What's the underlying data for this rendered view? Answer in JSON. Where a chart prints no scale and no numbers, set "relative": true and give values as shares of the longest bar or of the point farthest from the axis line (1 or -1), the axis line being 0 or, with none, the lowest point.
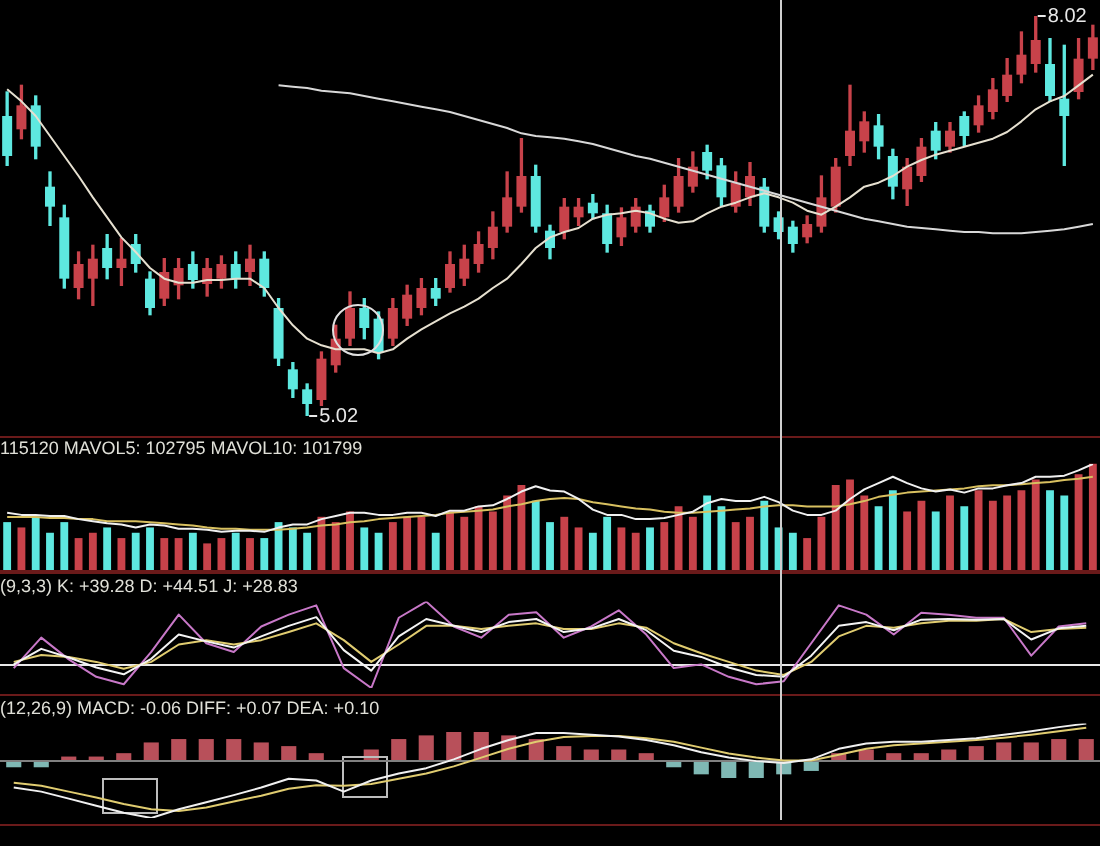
{
  "chart_data": [
    {
      "type": "candlestick",
      "legend": false,
      "tick_labels": false,
      "categories": [
        null,
        null,
        null,
        null,
        null,
        null,
        null,
        null,
        null,
        null,
        null,
        null,
        null,
        null,
        null,
        null,
        null,
        null,
        null,
        null,
        null,
        null,
        null,
        null,
        null,
        null,
        null,
        null,
        null,
        null,
        null,
        null,
        null,
        null,
        null,
        null,
        null,
        null,
        null,
        null,
        null,
        null,
        null,
        null,
        null,
        null,
        null,
        null,
        null,
        null,
        null,
        null,
        null,
        null,
        null,
        null,
        null,
        null,
        null,
        null,
        null,
        null,
        null,
        null,
        null,
        null,
        null,
        null,
        null,
        null,
        null,
        null,
        null,
        null,
        null,
        null,
        null
      ],
      "ohlc": [
        [
          7.27,
          7.45,
          6.9,
          6.97
        ],
        [
          7.17,
          7.5,
          7.1,
          7.35
        ],
        [
          7.35,
          7.42,
          6.95,
          7.04
        ],
        [
          6.74,
          6.85,
          6.45,
          6.59
        ],
        [
          6.51,
          6.6,
          5.98,
          6.05
        ],
        [
          5.98,
          6.25,
          5.9,
          6.16
        ],
        [
          6.05,
          6.3,
          5.85,
          6.2
        ],
        [
          6.28,
          6.38,
          6.05,
          6.13
        ],
        [
          6.13,
          6.35,
          6.0,
          6.2
        ],
        [
          6.31,
          6.38,
          6.1,
          6.16
        ],
        [
          6.05,
          6.1,
          5.78,
          5.83
        ],
        [
          5.9,
          6.2,
          5.85,
          6.1
        ],
        [
          6.0,
          6.2,
          5.9,
          6.13
        ],
        [
          6.16,
          6.25,
          5.98,
          6.04
        ],
        [
          6.01,
          6.2,
          5.92,
          6.13
        ],
        [
          6.05,
          6.22,
          5.98,
          6.16
        ],
        [
          6.16,
          6.25,
          5.98,
          6.05
        ],
        [
          6.1,
          6.3,
          6.0,
          6.2
        ],
        [
          6.2,
          6.25,
          5.92,
          5.98
        ],
        [
          5.83,
          5.9,
          5.4,
          5.45
        ],
        [
          5.37,
          5.42,
          5.16,
          5.22
        ],
        [
          5.22,
          5.26,
          5.02,
          5.11
        ],
        [
          5.14,
          5.5,
          5.1,
          5.45
        ],
        [
          5.4,
          5.7,
          5.35,
          5.6
        ],
        [
          5.6,
          5.95,
          5.55,
          5.83
        ],
        [
          5.83,
          5.9,
          5.6,
          5.68
        ],
        [
          5.75,
          5.8,
          5.45,
          5.5
        ],
        [
          5.6,
          5.9,
          5.55,
          5.83
        ],
        [
          5.75,
          6.0,
          5.7,
          5.93
        ],
        [
          5.83,
          6.05,
          5.78,
          5.98
        ],
        [
          5.98,
          6.05,
          5.85,
          5.9
        ],
        [
          5.98,
          6.25,
          5.95,
          6.16
        ],
        [
          6.05,
          6.3,
          6.0,
          6.2
        ],
        [
          6.16,
          6.4,
          6.1,
          6.31
        ],
        [
          6.28,
          6.55,
          6.2,
          6.44
        ],
        [
          6.44,
          6.85,
          6.4,
          6.66
        ],
        [
          6.59,
          7.1,
          6.55,
          6.82
        ],
        [
          6.82,
          6.9,
          6.4,
          6.44
        ],
        [
          6.41,
          6.45,
          6.2,
          6.28
        ],
        [
          6.4,
          6.65,
          6.35,
          6.59
        ],
        [
          6.51,
          6.65,
          6.45,
          6.59
        ],
        [
          6.62,
          6.68,
          6.5,
          6.54
        ],
        [
          6.54,
          6.6,
          6.25,
          6.31
        ],
        [
          6.36,
          6.58,
          6.3,
          6.51
        ],
        [
          6.44,
          6.65,
          6.4,
          6.59
        ],
        [
          6.56,
          6.6,
          6.4,
          6.44
        ],
        [
          6.51,
          6.75,
          6.48,
          6.66
        ],
        [
          6.59,
          6.95,
          6.55,
          6.82
        ],
        [
          6.74,
          7.0,
          6.7,
          6.89
        ],
        [
          7.0,
          7.05,
          6.8,
          6.86
        ],
        [
          6.9,
          6.95,
          6.6,
          6.66
        ],
        [
          6.59,
          6.85,
          6.55,
          6.77
        ],
        [
          6.66,
          6.92,
          6.6,
          6.82
        ],
        [
          6.74,
          6.8,
          6.4,
          6.44
        ],
        [
          6.51,
          6.55,
          6.35,
          6.4
        ],
        [
          6.44,
          6.48,
          6.25,
          6.31
        ],
        [
          6.36,
          6.52,
          6.32,
          6.46
        ],
        [
          6.44,
          6.82,
          6.4,
          6.66
        ],
        [
          6.59,
          6.95,
          6.55,
          6.89
        ],
        [
          6.97,
          7.5,
          6.9,
          7.16
        ],
        [
          7.08,
          7.3,
          7.0,
          7.23
        ],
        [
          7.2,
          7.28,
          6.95,
          7.04
        ],
        [
          6.97,
          7.02,
          6.65,
          6.74
        ],
        [
          6.72,
          6.95,
          6.6,
          6.89
        ],
        [
          6.82,
          7.1,
          6.78,
          7.04
        ],
        [
          7.16,
          7.22,
          6.95,
          7.01
        ],
        [
          7.04,
          7.22,
          7.0,
          7.16
        ],
        [
          7.27,
          7.3,
          7.05,
          7.12
        ],
        [
          7.2,
          7.42,
          7.15,
          7.35
        ],
        [
          7.3,
          7.55,
          7.25,
          7.47
        ],
        [
          7.42,
          7.7,
          7.38,
          7.58
        ],
        [
          7.58,
          7.9,
          7.52,
          7.73
        ],
        [
          7.66,
          8.02,
          7.6,
          7.84
        ],
        [
          7.66,
          7.85,
          7.38,
          7.42
        ],
        [
          7.4,
          7.8,
          6.9,
          7.27
        ],
        [
          7.45,
          7.85,
          7.4,
          7.7
        ],
        [
          7.7,
          7.95,
          7.62,
          7.86
        ]
      ],
      "colors": [
        "#5ee8e0",
        "#c8424a",
        "#5ee8e0",
        "#5ee8e0",
        "#5ee8e0",
        "#c8424a",
        "#c8424a",
        "#5ee8e0",
        "#c8424a",
        "#5ee8e0",
        "#5ee8e0",
        "#c8424a",
        "#c8424a",
        "#5ee8e0",
        "#c8424a",
        "#c8424a",
        "#5ee8e0",
        "#c8424a",
        "#5ee8e0",
        "#5ee8e0",
        "#5ee8e0",
        "#5ee8e0",
        "#c8424a",
        "#c8424a",
        "#c8424a",
        "#5ee8e0",
        "#5ee8e0",
        "#c8424a",
        "#c8424a",
        "#c8424a",
        "#5ee8e0",
        "#c8424a",
        "#c8424a",
        "#c8424a",
        "#c8424a",
        "#c8424a",
        "#c8424a",
        "#5ee8e0",
        "#5ee8e0",
        "#c8424a",
        "#c8424a",
        "#5ee8e0",
        "#5ee8e0",
        "#c8424a",
        "#c8424a",
        "#5ee8e0",
        "#c8424a",
        "#c8424a",
        "#c8424a",
        "#5ee8e0",
        "#5ee8e0",
        "#c8424a",
        "#c8424a",
        "#5ee8e0",
        "#5ee8e0",
        "#5ee8e0",
        "#c8424a",
        "#c8424a",
        "#c8424a",
        "#c8424a",
        "#c8424a",
        "#5ee8e0",
        "#5ee8e0",
        "#c8424a",
        "#c8424a",
        "#5ee8e0",
        "#c8424a",
        "#5ee8e0",
        "#c8424a",
        "#c8424a",
        "#c8424a",
        "#c8424a",
        "#c8424a",
        "#5ee8e0",
        "#5ee8e0",
        "#c8424a",
        "#c8424a"
      ],
      "series": [
        {
          "type": "line",
          "color": "#e6e0d0",
          "values": [
            7.47,
            7.38,
            7.27,
            7.12,
            6.97,
            6.82,
            6.66,
            6.51,
            6.36,
            6.25,
            6.13,
            6.05,
            6.02,
            6.02,
            6.04,
            6.04,
            6.05,
            6.05,
            5.98,
            5.83,
            5.7,
            5.6,
            5.55,
            5.52,
            5.52,
            5.52,
            5.49,
            5.52,
            5.6,
            5.67,
            5.73,
            5.79,
            5.84,
            5.9,
            5.98,
            6.05,
            6.16,
            6.28,
            6.36,
            6.4,
            6.43,
            6.5,
            6.53,
            6.54,
            6.56,
            6.54,
            6.5,
            6.47,
            6.48,
            6.54,
            6.59,
            6.62,
            6.66,
            6.69,
            6.66,
            6.62,
            6.56,
            6.53,
            6.59,
            6.66,
            6.74,
            6.77,
            6.82,
            6.89,
            6.94,
            6.98,
            7.01,
            7.04,
            7.07,
            7.1,
            7.15,
            7.23,
            7.32,
            7.38,
            7.42,
            7.5,
            7.58
          ]
        },
        {
          "type": "line",
          "color": "#d8d8d8",
          "values": [
            null,
            null,
            null,
            null,
            null,
            null,
            null,
            null,
            null,
            null,
            null,
            null,
            null,
            null,
            null,
            null,
            null,
            null,
            null,
            7.5,
            7.49,
            7.48,
            7.46,
            7.45,
            7.44,
            7.42,
            7.4,
            7.38,
            7.36,
            7.34,
            7.32,
            7.3,
            7.27,
            7.24,
            7.21,
            7.18,
            7.14,
            7.12,
            7.11,
            7.1,
            7.08,
            7.06,
            7.03,
            7.0,
            6.97,
            6.95,
            6.92,
            6.89,
            6.86,
            6.83,
            6.8,
            6.77,
            6.74,
            6.71,
            6.68,
            6.65,
            6.62,
            6.59,
            6.56,
            6.53,
            6.5,
            6.48,
            6.46,
            6.44,
            6.43,
            6.42,
            6.41,
            6.4,
            6.4,
            6.39,
            6.39,
            6.39,
            6.4,
            6.41,
            6.42,
            6.44,
            6.46
          ]
        }
      ],
      "annotations": [
        "8.02",
        "5.02"
      ]
    },
    {
      "type": "bar",
      "relative": true,
      "legend": false,
      "tick_labels": false,
      "title": "115120 MAVOL5: 102795 MAVOL10: 101799",
      "categories": [
        null,
        null,
        null,
        null,
        null,
        null,
        null,
        null,
        null,
        null,
        null,
        null,
        null,
        null,
        null,
        null,
        null,
        null,
        null,
        null,
        null,
        null,
        null,
        null,
        null,
        null,
        null,
        null,
        null,
        null,
        null,
        null,
        null,
        null,
        null,
        null,
        null,
        null,
        null,
        null,
        null,
        null,
        null,
        null,
        null,
        null,
        null,
        null,
        null,
        null,
        null,
        null,
        null,
        null,
        null,
        null,
        null,
        null,
        null,
        null,
        null,
        null,
        null,
        null,
        null,
        null,
        null,
        null,
        null,
        null,
        null,
        null,
        null,
        null,
        null,
        null,
        null
      ],
      "values": [
        0.45,
        0.4,
        0.5,
        0.35,
        0.45,
        0.3,
        0.35,
        0.4,
        0.3,
        0.35,
        0.4,
        0.3,
        0.3,
        0.35,
        0.25,
        0.3,
        0.35,
        0.3,
        0.3,
        0.45,
        0.4,
        0.35,
        0.5,
        0.45,
        0.55,
        0.4,
        0.35,
        0.45,
        0.5,
        0.5,
        0.35,
        0.55,
        0.5,
        0.6,
        0.55,
        0.7,
        0.8,
        0.65,
        0.45,
        0.5,
        0.4,
        0.35,
        0.5,
        0.4,
        0.35,
        0.4,
        0.45,
        0.6,
        0.5,
        0.7,
        0.6,
        0.45,
        0.5,
        0.65,
        0.4,
        0.35,
        0.3,
        0.5,
        0.8,
        0.85,
        0.7,
        0.6,
        0.75,
        0.55,
        0.65,
        0.55,
        0.7,
        0.6,
        0.75,
        0.65,
        0.7,
        0.75,
        0.85,
        0.75,
        0.7,
        0.9,
        1
      ],
      "colors": [
        "#5ee8e0",
        "#c8424a",
        "#5ee8e0",
        "#5ee8e0",
        "#5ee8e0",
        "#c8424a",
        "#c8424a",
        "#5ee8e0",
        "#c8424a",
        "#5ee8e0",
        "#5ee8e0",
        "#c8424a",
        "#c8424a",
        "#5ee8e0",
        "#c8424a",
        "#c8424a",
        "#5ee8e0",
        "#c8424a",
        "#5ee8e0",
        "#5ee8e0",
        "#5ee8e0",
        "#5ee8e0",
        "#c8424a",
        "#c8424a",
        "#c8424a",
        "#5ee8e0",
        "#5ee8e0",
        "#c8424a",
        "#c8424a",
        "#c8424a",
        "#5ee8e0",
        "#c8424a",
        "#c8424a",
        "#c8424a",
        "#c8424a",
        "#c8424a",
        "#c8424a",
        "#5ee8e0",
        "#5ee8e0",
        "#c8424a",
        "#c8424a",
        "#5ee8e0",
        "#5ee8e0",
        "#c8424a",
        "#c8424a",
        "#5ee8e0",
        "#c8424a",
        "#c8424a",
        "#c8424a",
        "#5ee8e0",
        "#5ee8e0",
        "#c8424a",
        "#c8424a",
        "#5ee8e0",
        "#5ee8e0",
        "#5ee8e0",
        "#c8424a",
        "#c8424a",
        "#c8424a",
        "#c8424a",
        "#c8424a",
        "#5ee8e0",
        "#5ee8e0",
        "#c8424a",
        "#c8424a",
        "#5ee8e0",
        "#c8424a",
        "#5ee8e0",
        "#c8424a",
        "#c8424a",
        "#c8424a",
        "#c8424a",
        "#c8424a",
        "#5ee8e0",
        "#5ee8e0",
        "#c8424a",
        "#c8424a"
      ]
    },
    {
      "type": "line",
      "relative": true,
      "legend": false,
      "tick_labels": false,
      "categories": [
        null,
        null,
        null,
        null,
        null,
        null,
        null,
        null,
        null,
        null,
        null,
        null,
        null,
        null,
        null,
        null,
        null,
        null,
        null,
        null,
        null,
        null,
        null,
        null,
        null,
        null,
        null,
        null,
        null,
        null,
        null,
        null,
        null,
        null,
        null,
        null,
        null,
        null,
        null,
        null,
        null,
        null,
        null,
        null,
        null,
        null,
        null,
        null,
        null,
        null,
        null,
        null,
        null,
        null,
        null,
        null,
        null,
        null,
        null,
        null,
        null,
        null,
        null,
        null,
        null,
        null,
        null,
        null,
        null,
        null,
        null,
        null,
        null,
        null,
        null,
        null,
        null
      ],
      "series": [
        {
          "color": "#f0f0f0",
          "values": [
            0.54,
            0.52,
            0.52,
            0.51,
            0.51,
            0.48,
            0.46,
            0.44,
            0.43,
            0.4,
            0.43,
            0.42,
            0.39,
            0.39,
            0.38,
            0.36,
            0.37,
            0.37,
            0.36,
            0.4,
            0.43,
            0.43,
            0.48,
            0.51,
            0.54,
            0.54,
            0.52,
            0.52,
            0.54,
            0.54,
            0.51,
            0.56,
            0.56,
            0.6,
            0.61,
            0.67,
            0.74,
            0.79,
            0.75,
            0.74,
            0.67,
            0.57,
            0.52,
            0.52,
            0.48,
            0.48,
            0.49,
            0.52,
            0.55,
            0.63,
            0.67,
            0.65,
            0.65,
            0.69,
            0.64,
            0.56,
            0.52,
            0.52,
            0.56,
            0.67,
            0.76,
            0.82,
            0.88,
            0.82,
            0.77,
            0.74,
            0.76,
            0.73,
            0.77,
            0.77,
            0.8,
            0.82,
            0.88,
            0.88,
            0.89,
            0.94,
            1
          ]
        },
        {
          "color": "#d8c060",
          "values": [
            0.5,
            0.5,
            0.5,
            0.49,
            0.49,
            0.48,
            0.48,
            0.46,
            0.46,
            0.46,
            0.45,
            0.44,
            0.43,
            0.42,
            0.4,
            0.39,
            0.39,
            0.38,
            0.38,
            0.38,
            0.39,
            0.4,
            0.42,
            0.43,
            0.45,
            0.46,
            0.48,
            0.49,
            0.5,
            0.51,
            0.52,
            0.54,
            0.55,
            0.56,
            0.57,
            0.6,
            0.62,
            0.65,
            0.67,
            0.68,
            0.67,
            0.64,
            0.62,
            0.6,
            0.58,
            0.57,
            0.55,
            0.54,
            0.54,
            0.55,
            0.56,
            0.57,
            0.58,
            0.6,
            0.61,
            0.61,
            0.6,
            0.6,
            0.6,
            0.62,
            0.65,
            0.69,
            0.71,
            0.73,
            0.74,
            0.75,
            0.76,
            0.77,
            0.79,
            0.8,
            0.8,
            0.81,
            0.82,
            0.83,
            0.85,
            0.86,
            0.88
          ]
        }
      ]
    },
    {
      "type": "line",
      "relative": true,
      "legend": false,
      "tick_labels": false,
      "title": "(9,3,3) K: +39.28 D: +44.51 J: +28.83",
      "categories": [
        null,
        null,
        null,
        null,
        null,
        null,
        null,
        null,
        null,
        null,
        null,
        null,
        null,
        null,
        null,
        null,
        null,
        null,
        null,
        null,
        null,
        null,
        null,
        null,
        null,
        null,
        null,
        null,
        null,
        null,
        null,
        null,
        null,
        null,
        null,
        null,
        null,
        null,
        null,
        null
      ],
      "series": [
        {
          "color": "#f4f4f4",
          "values": [
            -0.01,
            0.24,
            0.1,
            -0.06,
            -0.17,
            0.08,
            0.47,
            0.36,
            0.26,
            0.44,
            0.61,
            0.75,
            0.22,
            -0.11,
            0.44,
            0.72,
            0.61,
            0.51,
            0.67,
            0.72,
            0.51,
            0.57,
            0.72,
            0.54,
            0.21,
            0.11,
            -0.06,
            -0.18,
            -0.21,
            0.13,
            0.61,
            0.67,
            0.54,
            0.71,
            0.72,
            0.71,
            0.72,
            0.39,
            0.57,
            0.61
          ]
        },
        {
          "color": "#e0cc70",
          "values": [
            0.03,
            0.14,
            0.11,
            0.03,
            -0.08,
            0.03,
            0.31,
            0.38,
            0.31,
            0.38,
            0.51,
            0.65,
            0.38,
            0.03,
            0.31,
            0.61,
            0.61,
            0.56,
            0.61,
            0.65,
            0.56,
            0.56,
            0.65,
            0.58,
            0.33,
            0.17,
            0.03,
            -0.11,
            -0.18,
            0.03,
            0.44,
            0.61,
            0.58,
            0.65,
            0.69,
            0.69,
            0.72,
            0.51,
            0.56,
            0.58
          ]
        },
        {
          "color": "#c878c8",
          "values": [
            -0.07,
            0.42,
            0.07,
            -0.21,
            -0.33,
            0.19,
            0.79,
            0.33,
            0.19,
            0.6,
            0.79,
            0.94,
            -0.07,
            -0.39,
            0.74,
            1,
            0.6,
            0.42,
            0.79,
            0.83,
            0.42,
            0.6,
            0.86,
            0.47,
            -0.07,
            -0.01,
            -0.21,
            -0.33,
            -0.28,
            0.33,
            0.94,
            0.79,
            0.47,
            0.82,
            0.79,
            0.74,
            0.74,
            0.13,
            0.6,
            0.65
          ]
        }
      ]
    },
    {
      "type": "line",
      "relative": true,
      "legend": false,
      "tick_labels": false,
      "title": "(12,26,9) MACD: -0.06 DIFF: +0.07 DEA: +0.10",
      "categories": [
        null,
        null,
        null,
        null,
        null,
        null,
        null,
        null,
        null,
        null,
        null,
        null,
        null,
        null,
        null,
        null,
        null,
        null,
        null,
        null,
        null,
        null,
        null,
        null,
        null,
        null,
        null,
        null,
        null,
        null,
        null,
        null,
        null,
        null,
        null,
        null,
        null,
        null,
        null,
        null
      ],
      "series": [
        {
          "color": "#f0f0f0",
          "values": [
            -0.48,
            -0.55,
            -0.67,
            -0.79,
            -0.91,
            -1,
            -0.85,
            -0.73,
            -0.61,
            -0.48,
            -0.33,
            -0.36,
            -0.55,
            -0.36,
            -0.24,
            -0.15,
            0,
            0.18,
            0.33,
            0.45,
            0.45,
            0.42,
            0.39,
            0.33,
            0.24,
            0.12,
            0.03,
            -0.03,
            -0.06,
            0,
            0.18,
            0.27,
            0.3,
            0.3,
            0.33,
            0.36,
            0.42,
            0.48,
            0.55,
            0.61
          ]
        },
        {
          "color": "#e0cc70",
          "values": [
            -0.4,
            -0.45,
            -0.55,
            -0.65,
            -0.76,
            -0.85,
            -0.88,
            -0.82,
            -0.72,
            -0.62,
            -0.5,
            -0.44,
            -0.45,
            -0.42,
            -0.33,
            -0.24,
            -0.12,
            0.03,
            0.18,
            0.3,
            0.38,
            0.4,
            0.4,
            0.36,
            0.3,
            0.2,
            0.1,
            0.03,
            -0.02,
            -0.02,
            0.08,
            0.18,
            0.24,
            0.27,
            0.3,
            0.33,
            0.37,
            0.42,
            0.48,
            0.54
          ]
        }
      ]
    },
    {
      "type": "bar",
      "relative": true,
      "legend": false,
      "tick_labels": false,
      "categories": [
        null,
        null,
        null,
        null,
        null,
        null,
        null,
        null,
        null,
        null,
        null,
        null,
        null,
        null,
        null,
        null,
        null,
        null,
        null,
        null,
        null,
        null,
        null,
        null,
        null,
        null,
        null,
        null,
        null,
        null,
        null,
        null,
        null,
        null,
        null,
        null,
        null,
        null,
        null,
        null
      ],
      "values": [
        -0.25,
        -0.25,
        0.13,
        0.13,
        0.25,
        0.63,
        0.75,
        0.75,
        0.75,
        0.63,
        0.5,
        0.25,
        null,
        0.38,
        0.75,
        0.88,
        1,
        1,
        0.88,
        0.75,
        0.5,
        0.38,
        0.38,
        0.25,
        -0.25,
        -0.5,
        -0.63,
        -0.63,
        -0.5,
        -0.38,
        0.25,
        0.38,
        0.25,
        0.25,
        0.38,
        0.5,
        0.63,
        0.63,
        0.75,
        0.75
      ],
      "colors": [
        "#7fb8b4",
        "#7fb8b4",
        "#b8505a",
        "#b8505a",
        "#b8505a",
        "#b8505a",
        "#b8505a",
        "#b8505a",
        "#b8505a",
        "#b8505a",
        "#b8505a",
        "#b8505a",
        "#7fb8b4",
        "#b8505a",
        "#b8505a",
        "#b8505a",
        "#b8505a",
        "#b8505a",
        "#b8505a",
        "#b8505a",
        "#b8505a",
        "#b8505a",
        "#b8505a",
        "#b8505a",
        "#7fb8b4",
        "#7fb8b4",
        "#7fb8b4",
        "#7fb8b4",
        "#7fb8b4",
        "#7fb8b4",
        "#b8505a",
        "#b8505a",
        "#b8505a",
        "#b8505a",
        "#b8505a",
        "#b8505a",
        "#b8505a",
        "#b8505a",
        "#b8505a",
        "#b8505a"
      ]
    }
  ]
}
